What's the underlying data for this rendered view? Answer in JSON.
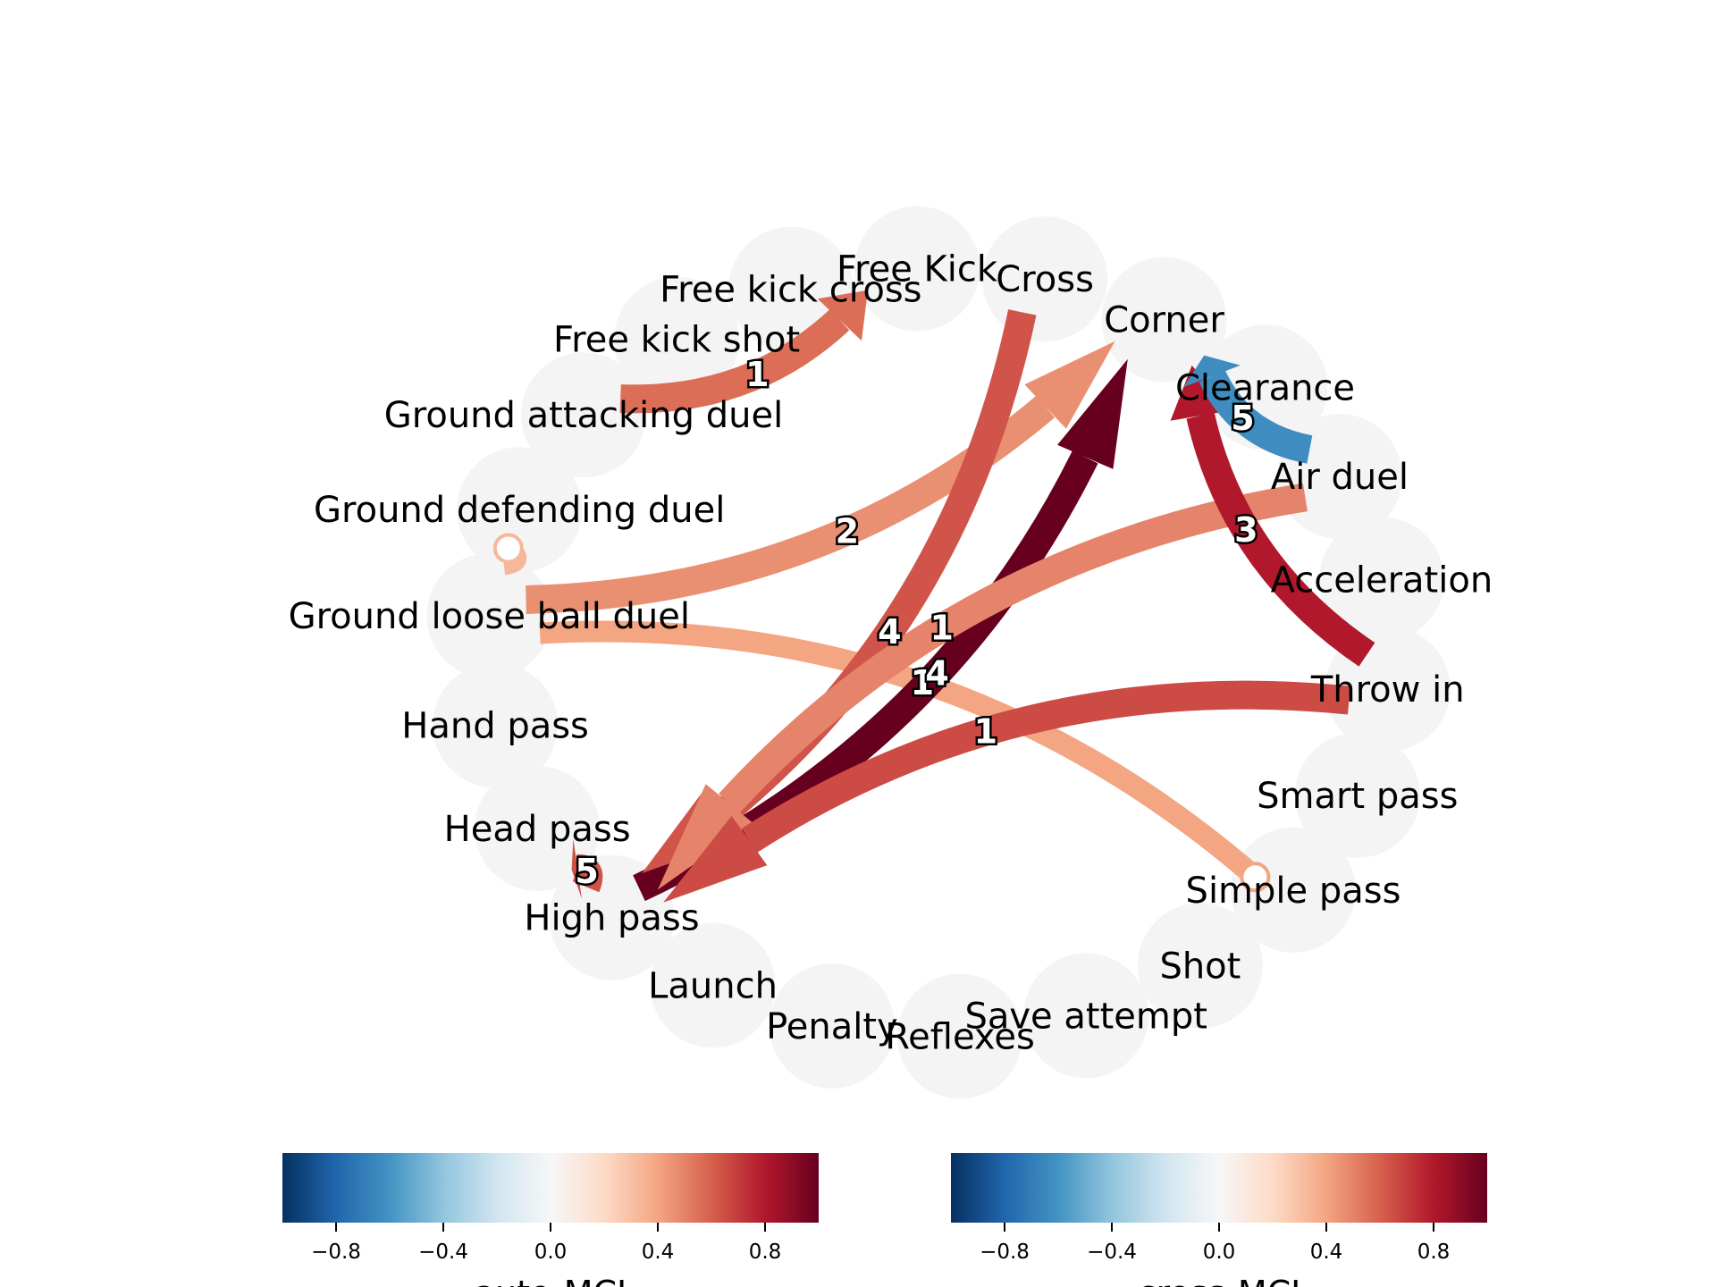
{
  "diagram": {
    "nodes": [
      {
        "id": "corner",
        "label": "Corner"
      },
      {
        "id": "clearance",
        "label": "Clearance"
      },
      {
        "id": "air_duel",
        "label": "Air duel"
      },
      {
        "id": "acceleration",
        "label": "Acceleration"
      },
      {
        "id": "throw_in",
        "label": "Throw in"
      },
      {
        "id": "smart_pass",
        "label": "Smart pass"
      },
      {
        "id": "simple_pass",
        "label": "Simple pass"
      },
      {
        "id": "shot",
        "label": "Shot"
      },
      {
        "id": "save_attempt",
        "label": "Save attempt"
      },
      {
        "id": "reflexes",
        "label": "Reflexes"
      },
      {
        "id": "penalty",
        "label": "Penalty"
      },
      {
        "id": "launch",
        "label": "Launch"
      },
      {
        "id": "high_pass",
        "label": "High pass"
      },
      {
        "id": "head_pass",
        "label": "Head pass"
      },
      {
        "id": "hand_pass",
        "label": "Hand pass"
      },
      {
        "id": "ground_loose_ball_duel",
        "label": "Ground loose ball duel"
      },
      {
        "id": "ground_defending_duel",
        "label": "Ground defending duel"
      },
      {
        "id": "ground_attacking_duel",
        "label": "Ground attacking duel"
      },
      {
        "id": "free_kick_shot",
        "label": "Free kick shot"
      },
      {
        "id": "free_kick_cross",
        "label": "Free kick cross"
      },
      {
        "id": "free_kick",
        "label": "Free Kick"
      },
      {
        "id": "cross",
        "label": "Cross"
      }
    ],
    "links": [
      {
        "from": "simple_pass",
        "to": "ground_loose_ball_duel",
        "label": "1",
        "color": "#f4a582",
        "kind": "circle"
      },
      {
        "from": "ground_attacking_duel",
        "to": "free_kick",
        "label": "1",
        "color": "#dc6e57",
        "kind": "arrow"
      },
      {
        "from": "ground_loose_ball_duel",
        "to": "corner",
        "label": "2",
        "color": "#e99073",
        "kind": "arrow"
      },
      {
        "from": "ground_defending_duel",
        "to": "ground_loose_ball_duel",
        "label": "",
        "color": "#f7b799",
        "kind": "circle"
      },
      {
        "from": "high_pass",
        "to": "corner",
        "label": "4",
        "color": "#67001f",
        "kind": "arrow"
      },
      {
        "from": "cross",
        "to": "high_pass",
        "label": "4",
        "color": "#d0544a",
        "kind": "arrow"
      },
      {
        "from": "air_duel",
        "to": "high_pass",
        "label": "1",
        "color": "#e5846a",
        "kind": "arrow"
      },
      {
        "from": "throw_in",
        "to": "high_pass",
        "label": "1",
        "color": "#cc4b45",
        "kind": "arrow"
      },
      {
        "from": "throw_in",
        "to": "corner",
        "label": "3",
        "color": "#b2182b",
        "kind": "arrow"
      },
      {
        "from": "air_duel",
        "to": "corner",
        "label": "5",
        "color": "#3f8dc0",
        "kind": "arrow"
      },
      {
        "from": "high_pass",
        "to": "head_pass",
        "label": "5",
        "color": "#cf5246",
        "kind": "arrow"
      }
    ]
  },
  "colorbars": [
    {
      "label": "auto-MCI",
      "ticks": [
        "−0.8",
        "−0.4",
        "0.0",
        "0.4",
        "0.8"
      ],
      "tick_values": [
        -0.8,
        -0.4,
        0.0,
        0.4,
        0.8
      ],
      "range": [
        -1,
        1
      ]
    },
    {
      "label": "cross-MCI",
      "ticks": [
        "−0.8",
        "−0.4",
        "0.0",
        "0.4",
        "0.8"
      ],
      "tick_values": [
        -0.8,
        -0.4,
        0.0,
        0.4,
        0.8
      ],
      "range": [
        -1,
        1
      ]
    }
  ],
  "colormap": {
    "name": "RdBu_r",
    "stops": [
      "#053061",
      "#2166ac",
      "#4393c3",
      "#92c5de",
      "#d1e5f0",
      "#f7f7f7",
      "#fddbc7",
      "#f4a582",
      "#d6604d",
      "#b2182b",
      "#67001f"
    ],
    "node_fill": "#f4f4f4"
  }
}
